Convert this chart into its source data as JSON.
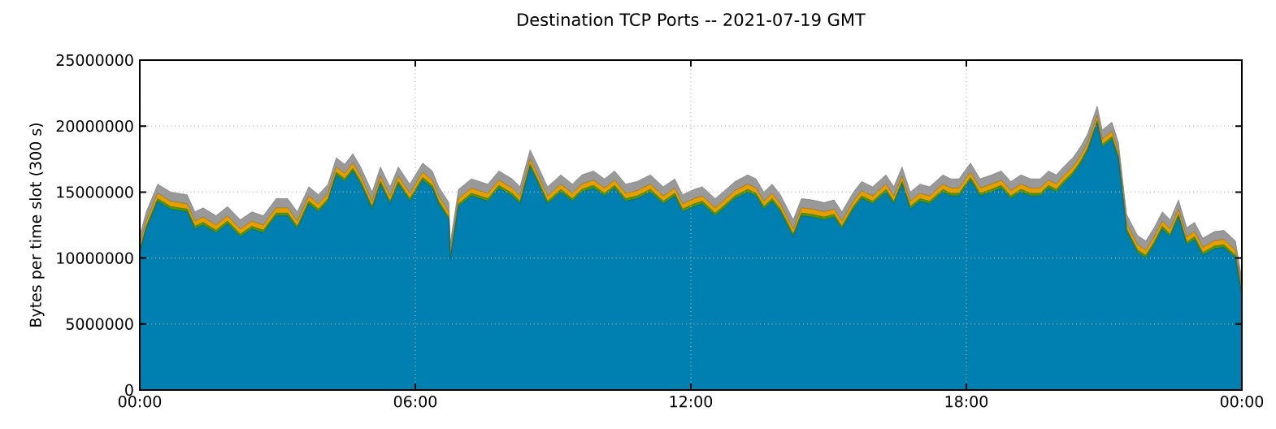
{
  "chart_data": {
    "type": "area",
    "stacked": true,
    "grid": true,
    "title": "Destination TCP Ports -- 2021-07-19 GMT",
    "ylabel": "Bytes per time slot (300 s)",
    "xlim": [
      0,
      24
    ],
    "ylim": [
      0,
      25000000
    ],
    "xticks": [
      {
        "value": 0,
        "label": "00:00"
      },
      {
        "value": 6,
        "label": "06:00"
      },
      {
        "value": 12,
        "label": "12:00"
      },
      {
        "value": 18,
        "label": "18:00"
      },
      {
        "value": 24,
        "label": "00:00"
      }
    ],
    "yticks": [
      0,
      5000000,
      10000000,
      15000000,
      20000000,
      25000000
    ],
    "x": [
      0,
      0.14,
      0.39,
      0.67,
      1.03,
      1.2,
      1.38,
      1.66,
      1.91,
      2.19,
      2.44,
      2.69,
      2.97,
      3.22,
      3.43,
      3.68,
      3.89,
      4.1,
      4.28,
      4.46,
      4.64,
      4.81,
      5.06,
      5.24,
      5.45,
      5.63,
      5.88,
      6.16,
      6.37,
      6.51,
      6.73,
      6.76,
      6.94,
      7.22,
      7.58,
      7.82,
      8.11,
      8.28,
      8.5,
      8.64,
      8.88,
      9.17,
      9.42,
      9.63,
      9.88,
      10.12,
      10.34,
      10.58,
      10.83,
      11.12,
      11.4,
      11.65,
      11.82,
      12.07,
      12.25,
      12.53,
      12.7,
      12.96,
      13.24,
      13.42,
      13.59,
      13.77,
      13.95,
      14.23,
      14.41,
      14.65,
      14.9,
      15.12,
      15.29,
      15.54,
      15.72,
      15.96,
      16.25,
      16.42,
      16.6,
      16.78,
      16.99,
      17.2,
      17.49,
      17.66,
      17.84,
      18.09,
      18.3,
      18.55,
      18.76,
      18.97,
      19.19,
      19.4,
      19.61,
      19.79,
      19.96,
      20.14,
      20.32,
      20.5,
      20.64,
      20.85,
      20.96,
      21.17,
      21.31,
      21.49,
      21.73,
      21.91,
      22.09,
      22.27,
      22.44,
      22.62,
      22.8,
      22.97,
      23.15,
      23.4,
      23.61,
      23.86,
      24
    ],
    "series": [
      {
        "color": "#0080b0",
        "values": [
          10400000,
          12200000,
          14300000,
          13700000,
          13500000,
          12200000,
          12500000,
          11900000,
          12600000,
          11600000,
          12200000,
          11900000,
          13200000,
          13200000,
          12200000,
          14100000,
          13500000,
          14300000,
          16300000,
          15800000,
          16600000,
          15600000,
          13700000,
          15600000,
          14100000,
          15600000,
          14300000,
          15900000,
          15300000,
          14100000,
          12900000,
          9800000,
          13900000,
          14700000,
          14300000,
          15300000,
          14700000,
          14100000,
          16900000,
          15900000,
          14100000,
          15000000,
          14300000,
          15000000,
          15300000,
          14700000,
          15300000,
          14300000,
          14500000,
          15000000,
          14100000,
          14700000,
          13500000,
          13900000,
          14100000,
          13200000,
          13700000,
          14500000,
          15000000,
          14700000,
          13700000,
          14300000,
          13500000,
          11600000,
          13200000,
          13100000,
          12900000,
          13100000,
          12200000,
          13700000,
          14500000,
          14100000,
          15000000,
          14100000,
          15600000,
          13700000,
          14300000,
          14100000,
          15000000,
          14700000,
          14700000,
          15900000,
          14700000,
          15000000,
          15300000,
          14500000,
          15000000,
          14700000,
          14700000,
          15300000,
          15000000,
          15700000,
          16300000,
          17200000,
          18100000,
          20200000,
          18400000,
          19000000,
          17500000,
          12000000,
          10400000,
          10000000,
          11000000,
          12200000,
          11600000,
          13100000,
          11000000,
          11400000,
          10200000,
          10700000,
          10800000,
          10000000,
          7100000
        ]
      },
      {
        "color": "#4e9a06",
        "values": [
          200000,
          200000,
          200000,
          200000,
          200000,
          200000,
          200000,
          200000,
          200000,
          200000,
          200000,
          200000,
          200000,
          200000,
          200000,
          200000,
          200000,
          200000,
          200000,
          200000,
          200000,
          200000,
          200000,
          200000,
          200000,
          200000,
          200000,
          200000,
          200000,
          200000,
          200000,
          200000,
          200000,
          200000,
          200000,
          200000,
          200000,
          200000,
          200000,
          200000,
          200000,
          200000,
          200000,
          200000,
          200000,
          200000,
          200000,
          200000,
          200000,
          200000,
          200000,
          200000,
          200000,
          200000,
          200000,
          200000,
          200000,
          200000,
          200000,
          200000,
          200000,
          200000,
          200000,
          200000,
          200000,
          200000,
          200000,
          200000,
          200000,
          200000,
          200000,
          200000,
          200000,
          200000,
          200000,
          200000,
          200000,
          200000,
          200000,
          200000,
          200000,
          200000,
          200000,
          200000,
          200000,
          200000,
          200000,
          200000,
          200000,
          200000,
          200000,
          200000,
          200000,
          200000,
          200000,
          200000,
          200000,
          200000,
          200000,
          200000,
          200000,
          200000,
          200000,
          200000,
          200000,
          200000,
          200000,
          200000,
          200000,
          200000,
          200000,
          200000,
          200000
        ]
      },
      {
        "color": "#e69f00",
        "values": [
          400000,
          400000,
          400000,
          400000,
          400000,
          400000,
          400000,
          400000,
          400000,
          400000,
          400000,
          400000,
          400000,
          400000,
          400000,
          400000,
          400000,
          400000,
          400000,
          400000,
          400000,
          400000,
          400000,
          400000,
          400000,
          400000,
          400000,
          400000,
          400000,
          400000,
          400000,
          400000,
          400000,
          400000,
          400000,
          400000,
          400000,
          400000,
          400000,
          400000,
          400000,
          400000,
          400000,
          400000,
          400000,
          400000,
          400000,
          400000,
          400000,
          400000,
          400000,
          400000,
          400000,
          400000,
          400000,
          400000,
          400000,
          400000,
          400000,
          400000,
          400000,
          400000,
          400000,
          400000,
          400000,
          400000,
          400000,
          400000,
          400000,
          400000,
          400000,
          400000,
          400000,
          400000,
          400000,
          400000,
          400000,
          400000,
          400000,
          400000,
          400000,
          400000,
          400000,
          400000,
          400000,
          400000,
          400000,
          400000,
          400000,
          400000,
          400000,
          400000,
          400000,
          400000,
          400000,
          400000,
          400000,
          400000,
          400000,
          400000,
          400000,
          400000,
          400000,
          400000,
          400000,
          400000,
          400000,
          400000,
          400000,
          400000,
          400000,
          400000,
          400000
        ]
      },
      {
        "color": "#999999",
        "values": [
          700000,
          700000,
          700000,
          700000,
          700000,
          700000,
          700000,
          700000,
          700000,
          700000,
          700000,
          700000,
          700000,
          700000,
          700000,
          700000,
          700000,
          700000,
          700000,
          700000,
          700000,
          700000,
          700000,
          700000,
          700000,
          700000,
          700000,
          700000,
          700000,
          700000,
          700000,
          700000,
          700000,
          700000,
          700000,
          700000,
          700000,
          700000,
          700000,
          700000,
          700000,
          700000,
          700000,
          700000,
          700000,
          700000,
          700000,
          700000,
          700000,
          700000,
          700000,
          700000,
          700000,
          700000,
          700000,
          700000,
          700000,
          700000,
          700000,
          700000,
          700000,
          700000,
          700000,
          700000,
          700000,
          700000,
          700000,
          700000,
          700000,
          700000,
          700000,
          700000,
          700000,
          700000,
          700000,
          700000,
          700000,
          700000,
          700000,
          700000,
          700000,
          700000,
          700000,
          700000,
          700000,
          700000,
          700000,
          700000,
          700000,
          700000,
          700000,
          700000,
          700000,
          700000,
          700000,
          700000,
          700000,
          700000,
          700000,
          700000,
          700000,
          700000,
          700000,
          700000,
          700000,
          700000,
          700000,
          700000,
          700000,
          700000,
          700000,
          700000,
          700000
        ]
      }
    ]
  }
}
